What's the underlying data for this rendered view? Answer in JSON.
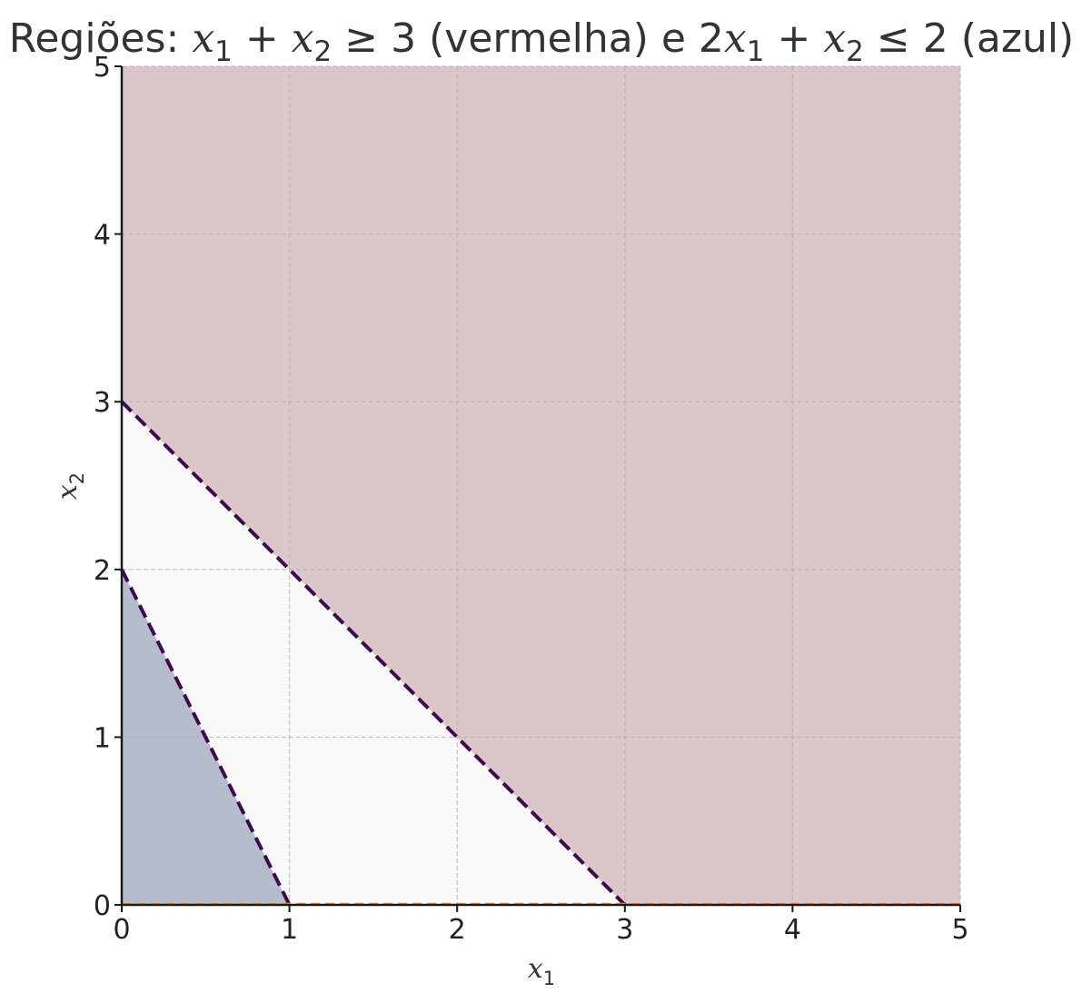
{
  "chart_data": {
    "type": "area",
    "title": {
      "prefix": "Regiões: ",
      "expr1_a": "x",
      "expr1_a_sub": "1",
      "expr1_op": " + ",
      "expr1_b": "x",
      "expr1_b_sub": "2",
      "expr1_rel": " ≥ 3",
      "expr1_desc": " (vermelha) e ",
      "expr2_coef": "2",
      "expr2_a": "x",
      "expr2_a_sub": "1",
      "expr2_op": " + ",
      "expr2_b": "x",
      "expr2_b_sub": "2",
      "expr2_rel": " ≤ 2",
      "expr2_desc": " (azul)"
    },
    "xlabel": {
      "var": "x",
      "sub": "1"
    },
    "ylabel": {
      "var": "x",
      "sub": "2"
    },
    "xlim": [
      0,
      5
    ],
    "ylim": [
      0,
      5
    ],
    "xticks": [
      0,
      1,
      2,
      3,
      4,
      5
    ],
    "yticks": [
      0,
      1,
      2,
      3,
      4,
      5
    ],
    "grid": true,
    "regions": [
      {
        "inequality": "x1 + x2 >= 3",
        "polygon": [
          [
            3,
            0
          ],
          [
            5,
            0
          ],
          [
            5,
            5
          ],
          [
            0,
            5
          ],
          [
            0,
            3
          ]
        ],
        "color": "#dbc6ca"
      },
      {
        "inequality": "2*x1 + x2 <= 2",
        "polygon": [
          [
            0,
            0
          ],
          [
            1,
            0
          ],
          [
            0,
            2
          ]
        ],
        "color": "#b5bdcd"
      }
    ],
    "background_color": "#f9f9f9",
    "boundary_lines": [
      {
        "equation": "x1 + x2 = 3",
        "points": [
          [
            0,
            3
          ],
          [
            3,
            0
          ]
        ],
        "color": "#3d0a4e",
        "style": "dashed"
      },
      {
        "equation": "2*x1 + x2 = 2",
        "points": [
          [
            0,
            2
          ],
          [
            1,
            0
          ]
        ],
        "color": "#3d0a4e",
        "style": "dashed"
      },
      {
        "equation": "x2 = 0",
        "points": [
          [
            0,
            0
          ],
          [
            5,
            0
          ]
        ],
        "color": "#e8a33d",
        "style": "dashed"
      }
    ]
  }
}
